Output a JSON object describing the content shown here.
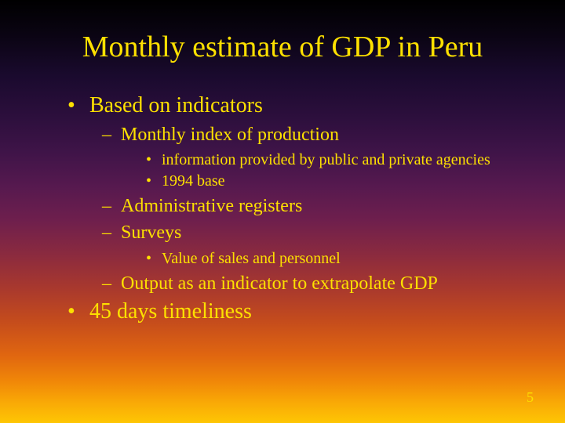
{
  "slide": {
    "title": "Monthly estimate of GDP in Peru",
    "page_number": "5",
    "background_gradient": [
      "#000000",
      "#1a0a2e",
      "#3f1448",
      "#6e1f4d",
      "#a8382e",
      "#e06610",
      "#fec604"
    ],
    "text_color": "#fde000",
    "font_family": "Times New Roman",
    "title_fontsize": 38,
    "l1_fontsize": 28,
    "l2_fontsize": 24,
    "l3_fontsize": 20,
    "bullets": {
      "b1": "Based on indicators",
      "b1_1": "Monthly index of production",
      "b1_1_a": "information provided by public and private agencies",
      "b1_1_b": "1994 base",
      "b1_2": "Administrative registers",
      "b1_3": "Surveys",
      "b1_3_a": "Value of sales and personnel",
      "b1_4": "Output as an indicator to extrapolate GDP",
      "b2": "45 days timeliness"
    }
  }
}
